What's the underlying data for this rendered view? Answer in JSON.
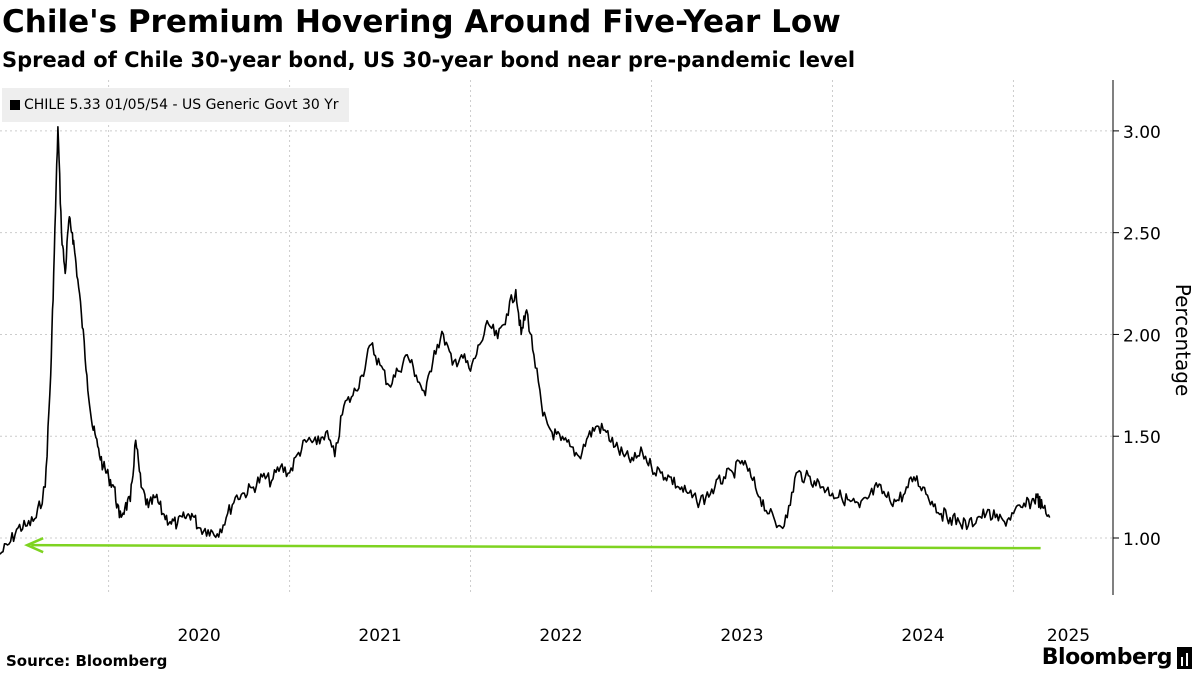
{
  "chart_data": {
    "type": "line",
    "title": "Chile's Premium Hovering Around Five-Year Low",
    "subtitle": "Spread of Chile 30-year bond, US 30-year bond near pre-pandemic level",
    "series": [
      {
        "name": "CHILE 5.33 01/05/54 - US Generic Govt 30 Yr",
        "color": "#000000",
        "x": [
          2019.4,
          2019.45,
          2019.5,
          2019.55,
          2019.6,
          2019.65,
          2019.68,
          2019.7,
          2019.72,
          2019.74,
          2019.76,
          2019.78,
          2019.8,
          2019.82,
          2019.85,
          2019.88,
          2019.91,
          2019.94,
          2019.97,
          2020.0,
          2020.03,
          2020.06,
          2020.09,
          2020.12,
          2020.15,
          2020.18,
          2020.22,
          2020.26,
          2020.3,
          2020.34,
          2020.38,
          2020.42,
          2020.46,
          2020.5,
          2020.55,
          2020.6,
          2020.65,
          2020.7,
          2020.75,
          2020.8,
          2020.85,
          2020.9,
          2020.95,
          2021.0,
          2021.05,
          2021.1,
          2021.15,
          2021.2,
          2021.25,
          2021.3,
          2021.35,
          2021.4,
          2021.45,
          2021.5,
          2021.55,
          2021.6,
          2021.65,
          2021.7,
          2021.75,
          2021.8,
          2021.85,
          2021.9,
          2021.95,
          2022.0,
          2022.05,
          2022.1,
          2022.15,
          2022.2,
          2022.25,
          2022.28,
          2022.31,
          2022.35,
          2022.4,
          2022.45,
          2022.5,
          2022.55,
          2022.6,
          2022.65,
          2022.7,
          2022.75,
          2022.8,
          2022.85,
          2022.9,
          2022.95,
          2023.0,
          2023.05,
          2023.1,
          2023.15,
          2023.2,
          2023.25,
          2023.3,
          2023.35,
          2023.4,
          2023.45,
          2023.5,
          2023.55,
          2023.6,
          2023.65,
          2023.7,
          2023.75,
          2023.8,
          2023.85,
          2023.9,
          2023.95,
          2024.0,
          2024.05,
          2024.1,
          2024.15,
          2024.2,
          2024.25,
          2024.3,
          2024.35,
          2024.4,
          2024.45,
          2024.5,
          2024.55,
          2024.6,
          2024.65,
          2024.7,
          2024.75,
          2024.8,
          2024.85,
          2024.9,
          2024.95,
          2025.0,
          2025.05,
          2025.1,
          2025.13,
          2025.16,
          2025.2
        ],
        "values": [
          0.92,
          0.97,
          1.05,
          1.06,
          1.1,
          1.25,
          1.8,
          2.4,
          3.02,
          2.5,
          2.3,
          2.56,
          2.5,
          2.35,
          2.1,
          1.8,
          1.55,
          1.45,
          1.35,
          1.3,
          1.25,
          1.1,
          1.15,
          1.18,
          1.48,
          1.25,
          1.15,
          1.2,
          1.12,
          1.08,
          1.07,
          1.1,
          1.12,
          1.05,
          1.04,
          1.02,
          1.1,
          1.2,
          1.22,
          1.25,
          1.3,
          1.28,
          1.35,
          1.32,
          1.42,
          1.48,
          1.46,
          1.52,
          1.4,
          1.65,
          1.7,
          1.8,
          1.95,
          1.85,
          1.75,
          1.82,
          1.9,
          1.8,
          1.7,
          1.92,
          2.0,
          1.85,
          1.9,
          1.82,
          1.95,
          2.05,
          1.98,
          2.1,
          2.22,
          2.0,
          2.12,
          1.9,
          1.6,
          1.52,
          1.48,
          1.45,
          1.4,
          1.5,
          1.55,
          1.52,
          1.45,
          1.4,
          1.38,
          1.42,
          1.35,
          1.32,
          1.3,
          1.25,
          1.22,
          1.18,
          1.2,
          1.25,
          1.3,
          1.32,
          1.38,
          1.3,
          1.2,
          1.12,
          1.06,
          1.1,
          1.32,
          1.3,
          1.28,
          1.25,
          1.22,
          1.2,
          1.18,
          1.15,
          1.2,
          1.25,
          1.2,
          1.18,
          1.22,
          1.3,
          1.25,
          1.18,
          1.12,
          1.1,
          1.08,
          1.06,
          1.1,
          1.12,
          1.1,
          1.08,
          1.12,
          1.15,
          1.18,
          1.2,
          1.15,
          1.1
        ]
      }
    ],
    "annotations": [
      {
        "type": "horizontal-arrow",
        "color": "#7ed321",
        "y": 0.95,
        "x_from": 2025.15,
        "x_to": 2019.55,
        "meaning": "pre-pandemic level"
      }
    ],
    "x_ticks": [
      "2020",
      "2021",
      "2022",
      "2023",
      "2024",
      "2025"
    ],
    "x_tick_values": [
      2020.0,
      2021.0,
      2022.0,
      2023.0,
      2024.0,
      2025.0
    ],
    "xlim": [
      2019.4,
      2025.55
    ],
    "y_ticks": [
      "1.00",
      "1.50",
      "2.00",
      "2.50",
      "3.00"
    ],
    "y_tick_values": [
      1.0,
      1.5,
      2.0,
      2.5,
      3.0
    ],
    "ylim": [
      0.72,
      3.25
    ],
    "ylabel": "Percentage",
    "xlabel": "",
    "grid": true,
    "legend_position": "top-left"
  },
  "footer": {
    "source": "Source: Bloomberg",
    "brand": "Bloomberg"
  }
}
